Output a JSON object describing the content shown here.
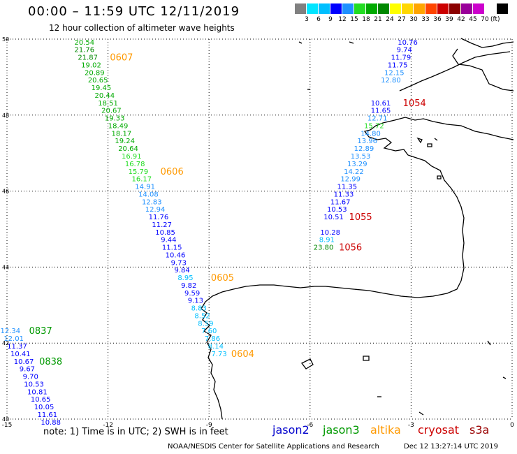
{
  "header": {
    "title": "00:00 – 11:59 UTC 12/11/2019",
    "subtitle": "12 hour collection of altimeter wave heights"
  },
  "colorbar": {
    "colors": [
      "#808080",
      "#00e5ff",
      "#00bfff",
      "#0000ff",
      "#1e90ff",
      "#22dd22",
      "#00aa00",
      "#008800",
      "#ffff00",
      "#ffd700",
      "#ffa500",
      "#ff4500",
      "#cc0000",
      "#8b0000",
      "#990099",
      "#cc00cc",
      "#ffffff",
      "#000000"
    ],
    "labels": [
      "3",
      "6",
      "9",
      "12",
      "15",
      "18",
      "21",
      "24",
      "27",
      "30",
      "33",
      "36",
      "39",
      "42",
      "45",
      "70"
    ],
    "unit": "(ft)"
  },
  "map": {
    "lon_range": [
      -15,
      0
    ],
    "lat_range": [
      40,
      50
    ],
    "x_ticks": [
      "-15",
      "-12",
      "-9",
      "-6",
      "-3",
      "0"
    ],
    "y_ticks": [
      "50",
      "48",
      "46",
      "44",
      "42",
      "40"
    ],
    "grid": "dotted"
  },
  "tracks": [
    {
      "name": "altika-west",
      "satellite": "altika",
      "points": [
        {
          "lon": -12.7,
          "lat": 49.93,
          "v": "20.54"
        },
        {
          "lon": -12.7,
          "lat": 49.73,
          "v": "21.76"
        },
        {
          "lon": -12.6,
          "lat": 49.53,
          "v": "21.87"
        },
        {
          "lon": -12.5,
          "lat": 49.33,
          "v": "19.02"
        },
        {
          "lon": -12.4,
          "lat": 49.13,
          "v": "20.89"
        },
        {
          "lon": -12.3,
          "lat": 48.93,
          "v": "20.65"
        },
        {
          "lon": -12.2,
          "lat": 48.73,
          "v": "19.45"
        },
        {
          "lon": -12.1,
          "lat": 48.53,
          "v": "20.44"
        },
        {
          "lon": -12.0,
          "lat": 48.33,
          "v": "18.51"
        },
        {
          "lon": -11.9,
          "lat": 48.13,
          "v": "20.67"
        },
        {
          "lon": -11.8,
          "lat": 47.93,
          "v": "19.33"
        },
        {
          "lon": -11.7,
          "lat": 47.73,
          "v": "18.49"
        },
        {
          "lon": -11.6,
          "lat": 47.53,
          "v": "18.17"
        },
        {
          "lon": -11.5,
          "lat": 47.33,
          "v": "19.24"
        },
        {
          "lon": -11.4,
          "lat": 47.13,
          "v": "20.64"
        },
        {
          "lon": -11.3,
          "lat": 46.93,
          "v": "16.91"
        },
        {
          "lon": -11.2,
          "lat": 46.73,
          "v": "16.78"
        },
        {
          "lon": -11.1,
          "lat": 46.53,
          "v": "15.79"
        },
        {
          "lon": -11.0,
          "lat": 46.33,
          "v": "16.17"
        },
        {
          "lon": -10.9,
          "lat": 46.13,
          "v": "14.91"
        },
        {
          "lon": -10.8,
          "lat": 45.93,
          "v": "14.08"
        },
        {
          "lon": -10.7,
          "lat": 45.73,
          "v": "12.83"
        },
        {
          "lon": -10.6,
          "lat": 45.53,
          "v": "12.94"
        },
        {
          "lon": -10.5,
          "lat": 45.33,
          "v": "11.76"
        },
        {
          "lon": -10.4,
          "lat": 45.13,
          "v": "11.27"
        },
        {
          "lon": -10.3,
          "lat": 44.93,
          "v": "10.85"
        },
        {
          "lon": -10.2,
          "lat": 44.73,
          "v": "9.44"
        },
        {
          "lon": -10.1,
          "lat": 44.53,
          "v": "11.15"
        },
        {
          "lon": -10.0,
          "lat": 44.33,
          "v": "10.46"
        },
        {
          "lon": -9.9,
          "lat": 44.13,
          "v": "9.73"
        },
        {
          "lon": -9.8,
          "lat": 43.93,
          "v": "9.84"
        },
        {
          "lon": -9.7,
          "lat": 43.73,
          "v": "8.95"
        },
        {
          "lon": -9.6,
          "lat": 43.53,
          "v": "9.82"
        },
        {
          "lon": -9.5,
          "lat": 43.33,
          "v": "9.59"
        },
        {
          "lon": -9.4,
          "lat": 43.13,
          "v": "9.13"
        },
        {
          "lon": -9.3,
          "lat": 42.93,
          "v": "8.83"
        },
        {
          "lon": -9.2,
          "lat": 42.73,
          "v": "8.52"
        },
        {
          "lon": -9.1,
          "lat": 42.53,
          "v": "8.59"
        },
        {
          "lon": -9.0,
          "lat": 42.33,
          "v": "7.60"
        },
        {
          "lon": -8.9,
          "lat": 42.13,
          "v": "7.86"
        },
        {
          "lon": -8.8,
          "lat": 41.93,
          "v": "8.14"
        },
        {
          "lon": -8.7,
          "lat": 41.73,
          "v": "7.73"
        }
      ],
      "time_labels": [
        {
          "lon": -11.6,
          "lat": 49.53,
          "t": "0607"
        },
        {
          "lon": -10.1,
          "lat": 46.53,
          "t": "0606"
        },
        {
          "lon": -8.6,
          "lat": 43.73,
          "t": "0605"
        },
        {
          "lon": -8.0,
          "lat": 41.73,
          "t": "0604"
        }
      ]
    },
    {
      "name": "jason3-sw",
      "satellite": "jason3",
      "points": [
        {
          "lon": -14.9,
          "lat": 42.33,
          "v": "12.34"
        },
        {
          "lon": -14.8,
          "lat": 42.13,
          "v": "12.01"
        },
        {
          "lon": -14.7,
          "lat": 41.93,
          "v": "11.37"
        },
        {
          "lon": -14.6,
          "lat": 41.73,
          "v": "10.41"
        },
        {
          "lon": -14.5,
          "lat": 41.53,
          "v": "10.67"
        },
        {
          "lon": -14.4,
          "lat": 41.33,
          "v": "9.67"
        },
        {
          "lon": -14.3,
          "lat": 41.13,
          "v": "9.70"
        },
        {
          "lon": -14.2,
          "lat": 40.93,
          "v": "10.53"
        },
        {
          "lon": -14.1,
          "lat": 40.73,
          "v": "10.81"
        },
        {
          "lon": -14.0,
          "lat": 40.53,
          "v": "10.65"
        },
        {
          "lon": -13.9,
          "lat": 40.33,
          "v": "10.05"
        },
        {
          "lon": -13.8,
          "lat": 40.13,
          "v": "11.61"
        },
        {
          "lon": -13.7,
          "lat": 39.93,
          "v": "10.88"
        }
      ],
      "time_labels": [
        {
          "lon": -14.0,
          "lat": 42.33,
          "t": "0837"
        },
        {
          "lon": -13.7,
          "lat": 41.53,
          "t": "0838"
        }
      ]
    },
    {
      "name": "cryosat-east",
      "satellite": "cryosat",
      "points": [
        {
          "lon": -3.1,
          "lat": 49.93,
          "v": "10.76"
        },
        {
          "lon": -3.2,
          "lat": 49.73,
          "v": "9.74"
        },
        {
          "lon": -3.3,
          "lat": 49.53,
          "v": "11.79"
        },
        {
          "lon": -3.4,
          "lat": 49.33,
          "v": "11.75"
        },
        {
          "lon": -3.5,
          "lat": 49.13,
          "v": "12.15"
        },
        {
          "lon": -3.6,
          "lat": 48.93,
          "v": "12.80"
        },
        {
          "lon": -3.9,
          "lat": 48.33,
          "v": "10.61"
        },
        {
          "lon": -3.9,
          "lat": 48.13,
          "v": "11.65"
        },
        {
          "lon": -4.0,
          "lat": 47.93,
          "v": "12.71"
        },
        {
          "lon": -4.1,
          "lat": 47.73,
          "v": "15.72"
        },
        {
          "lon": -4.2,
          "lat": 47.53,
          "v": "14.80"
        },
        {
          "lon": -4.3,
          "lat": 47.33,
          "v": "13.96"
        },
        {
          "lon": -4.4,
          "lat": 47.13,
          "v": "12.89"
        },
        {
          "lon": -4.5,
          "lat": 46.93,
          "v": "13.53"
        },
        {
          "lon": -4.6,
          "lat": 46.73,
          "v": "13.29"
        },
        {
          "lon": -4.7,
          "lat": 46.53,
          "v": "14.22"
        },
        {
          "lon": -4.8,
          "lat": 46.33,
          "v": "12.99"
        },
        {
          "lon": -4.9,
          "lat": 46.13,
          "v": "11.35"
        },
        {
          "lon": -5.0,
          "lat": 45.93,
          "v": "11.33"
        },
        {
          "lon": -5.1,
          "lat": 45.73,
          "v": "11.67"
        },
        {
          "lon": -5.2,
          "lat": 45.53,
          "v": "10.53"
        },
        {
          "lon": -5.3,
          "lat": 45.33,
          "v": "10.51"
        },
        {
          "lon": -5.4,
          "lat": 44.93,
          "v": "10.28"
        },
        {
          "lon": -5.5,
          "lat": 44.73,
          "v": "8.91"
        },
        {
          "lon": -5.6,
          "lat": 44.53,
          "v": "23.80"
        }
      ],
      "time_labels": [
        {
          "lon": -2.9,
          "lat": 48.33,
          "t": "1054"
        },
        {
          "lon": -4.5,
          "lat": 45.33,
          "t": "1055"
        },
        {
          "lon": -4.8,
          "lat": 44.53,
          "t": "1056"
        }
      ]
    }
  ],
  "footer": {
    "note": "note: 1) Time is in UTC; 2) SWH is in feet",
    "legend": [
      {
        "label": "jason2",
        "color": "#0000cc"
      },
      {
        "label": "jason3",
        "color": "#009900"
      },
      {
        "label": "altika",
        "color": "#ff9900"
      },
      {
        "label": "cryosat",
        "color": "#cc0000"
      },
      {
        "label": "s3a",
        "color": "#990000"
      }
    ],
    "credit": "NOAA/NESDIS Center for Satellite Applications and Research",
    "stamp": "Dec 12 13:27:14 UTC 2019"
  }
}
